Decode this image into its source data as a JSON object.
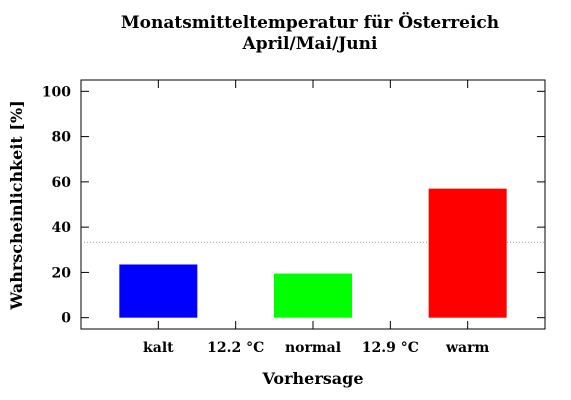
{
  "chart_data": {
    "type": "bar",
    "title": "Monatsmitteltemperatur für Österreich",
    "subtitle": "April/Mai/Juni",
    "xlabel": "Vorhersage",
    "ylabel": "Wahrscheinlichkeit [%]",
    "ylim": [
      -5,
      105
    ],
    "yticks": [
      0,
      20,
      40,
      60,
      80,
      100
    ],
    "categories": [
      "kalt",
      "normal",
      "warm"
    ],
    "values": [
      23.5,
      19.5,
      57
    ],
    "colors": [
      "#0000ff",
      "#00ff00",
      "#ff0000"
    ],
    "boundary_labels": [
      "12.2 °C",
      "12.9 °C"
    ],
    "reference_line": 33.3,
    "grid": false
  }
}
